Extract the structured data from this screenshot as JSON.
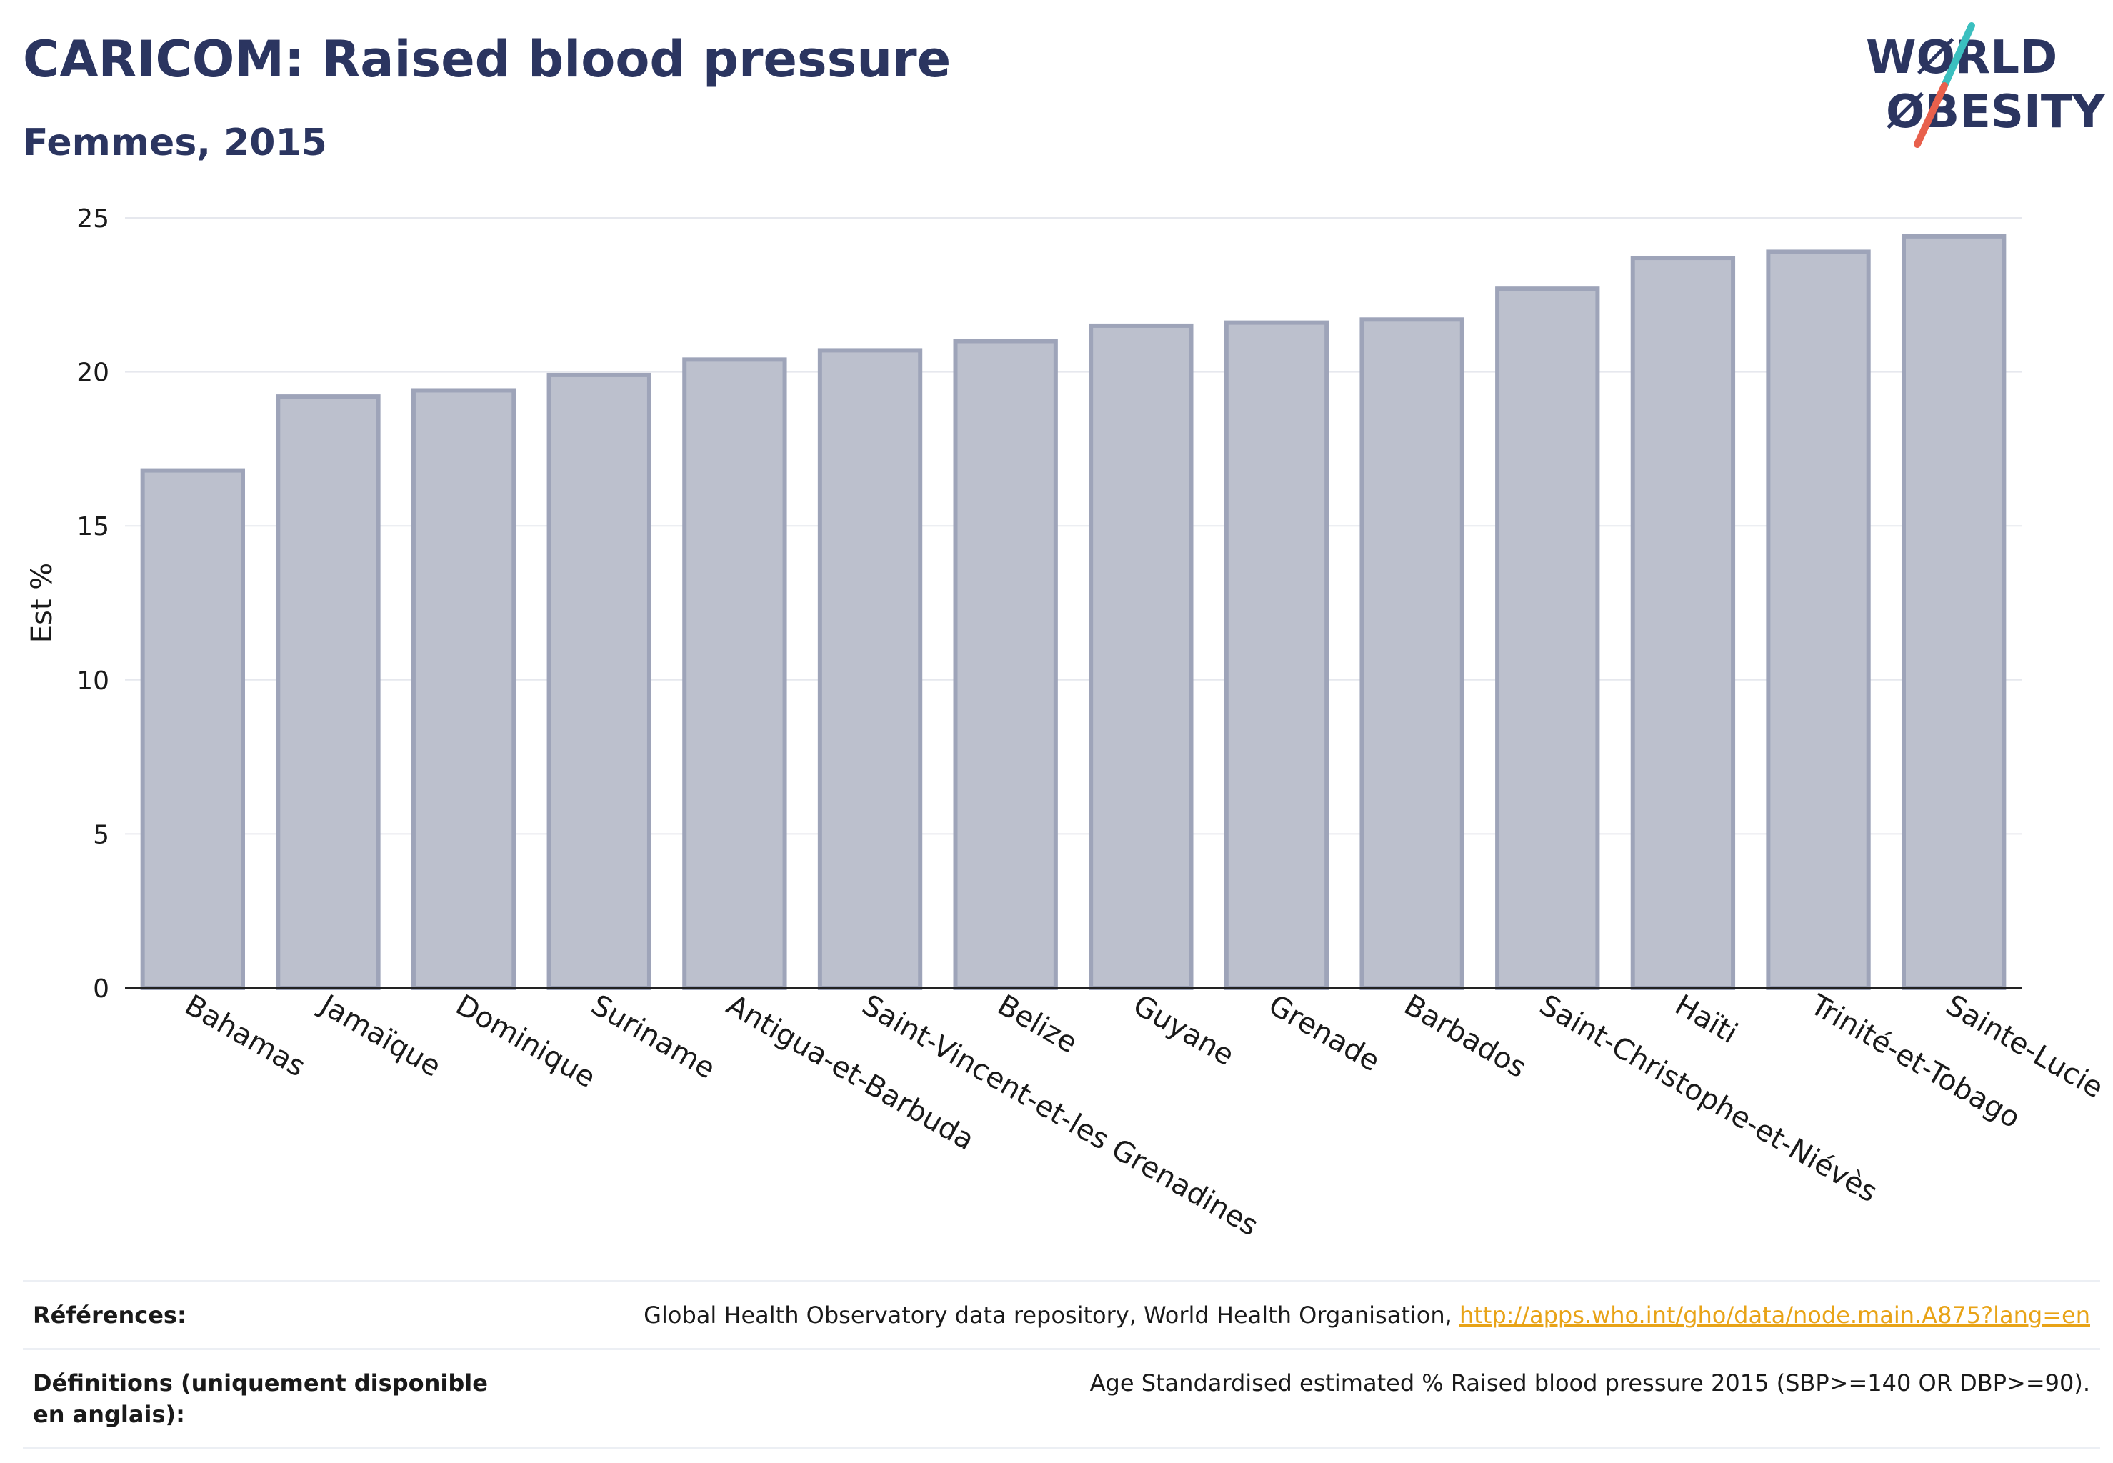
{
  "header": {
    "title": "CARICOM: Raised blood pressure",
    "subtitle": "Femmes, 2015",
    "logo_top": "WØRLD",
    "logo_bottom": "ØBESITY"
  },
  "colors": {
    "bar_fill": "#bcc0cd",
    "bar_stroke": "#9ea4b9",
    "title": "#2b3560",
    "link": "#e8a317",
    "logo_teal": "#3bbfbf",
    "logo_red": "#e8604c"
  },
  "chart_data": {
    "type": "bar",
    "categories": [
      "Bahamas",
      "Jamaïque",
      "Dominique",
      "Suriname",
      "Antigua-et-Barbuda",
      "Saint-Vincent-et-les Grenadines",
      "Belize",
      "Guyane",
      "Grenade",
      "Barbados",
      "Saint-Christophe-et-Niévès",
      "Haïti",
      "Trinité-et-Tobago",
      "Sainte-Lucie"
    ],
    "values": [
      16.8,
      19.2,
      19.4,
      19.9,
      20.4,
      20.7,
      21.0,
      21.5,
      21.6,
      21.7,
      22.7,
      23.7,
      23.9,
      24.4
    ],
    "ylabel": "Est %",
    "xlabel": "",
    "ylim": [
      0,
      25
    ],
    "yticks": [
      0,
      5,
      10,
      15,
      20,
      25
    ],
    "grid": true
  },
  "references": {
    "refs_label": "Références:",
    "refs_text": "Global Health Observatory data repository, World Health Organisation, ",
    "refs_link": "http://apps.who.int/gho/data/node.main.A875?lang=en",
    "defs_label": "Définitions (uniquement disponible en anglais):",
    "defs_text": "Age Standardised estimated % Raised blood pressure 2015 (SBP>=140 OR DBP>=90)."
  }
}
